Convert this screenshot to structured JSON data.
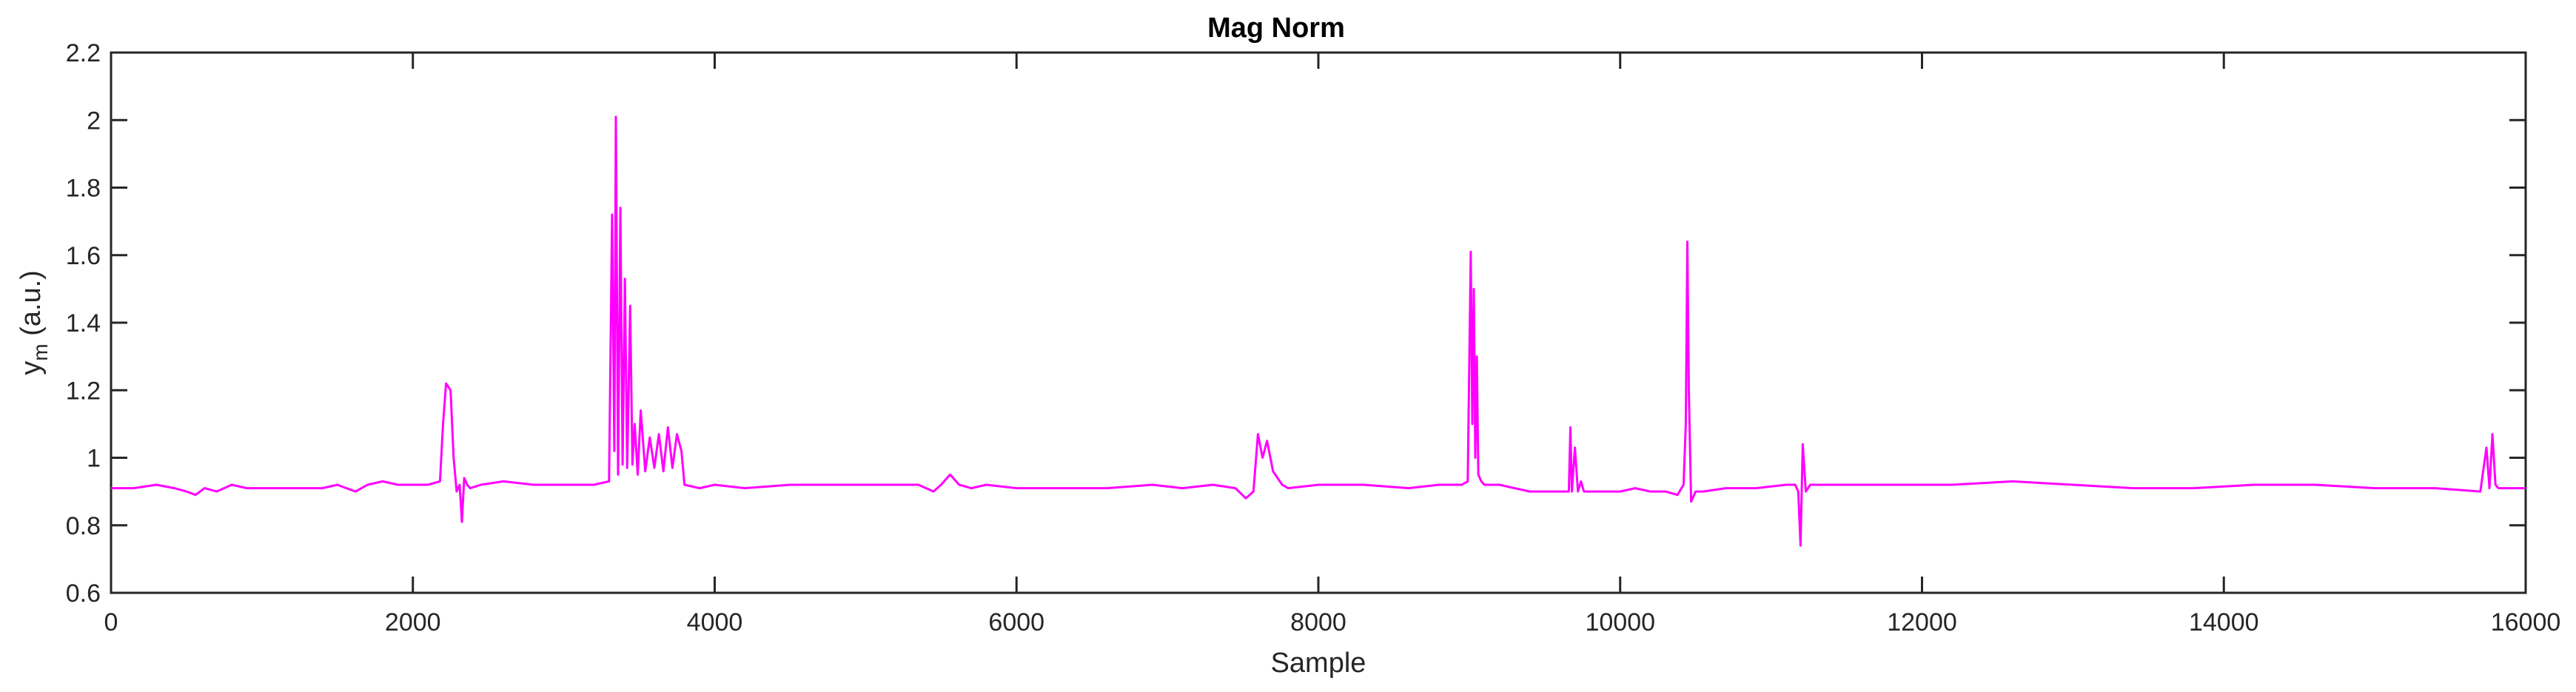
{
  "chart_data": {
    "type": "line",
    "title": "Mag Norm",
    "xlabel": "Sample",
    "ylabel_main": "y",
    "ylabel_sub": "m",
    "ylabel_unit": " (a.u.)",
    "xlim": [
      0,
      16000
    ],
    "ylim": [
      0.6,
      2.2
    ],
    "xticks": [
      0,
      2000,
      4000,
      6000,
      8000,
      10000,
      12000,
      14000,
      16000
    ],
    "xtick_labels": [
      "0",
      "2000",
      "4000",
      "6000",
      "8000",
      "10000",
      "12000",
      "14000",
      "16000"
    ],
    "yticks": [
      0.6,
      0.8,
      1,
      1.2,
      1.4,
      1.6,
      1.8,
      2,
      2.2
    ],
    "ytick_labels": [
      "0.6",
      "0.8",
      "1",
      "1.2",
      "1.4",
      "1.6",
      "1.8",
      "2",
      "2.2"
    ],
    "grid": false,
    "series": [
      {
        "color": "#ff00ff",
        "x": [
          0,
          150,
          300,
          420,
          500,
          560,
          620,
          700,
          800,
          900,
          1000,
          1200,
          1400,
          1500,
          1560,
          1620,
          1700,
          1800,
          1900,
          2000,
          2100,
          2180,
          2200,
          2220,
          2250,
          2270,
          2290,
          2310,
          2325,
          2340,
          2360,
          2380,
          2450,
          2600,
          2800,
          3000,
          3200,
          3300,
          3320,
          3335,
          3345,
          3360,
          3375,
          3390,
          3405,
          3420,
          3440,
          3455,
          3470,
          3490,
          3510,
          3540,
          3570,
          3600,
          3630,
          3660,
          3690,
          3720,
          3750,
          3780,
          3800,
          3900,
          4000,
          4200,
          4500,
          4800,
          5000,
          5200,
          5350,
          5450,
          5500,
          5560,
          5620,
          5700,
          5800,
          6000,
          6300,
          6600,
          6900,
          7100,
          7300,
          7450,
          7520,
          7570,
          7600,
          7630,
          7660,
          7700,
          7760,
          7800,
          8000,
          8300,
          8600,
          8800,
          8950,
          8990,
          9010,
          9020,
          9030,
          9040,
          9050,
          9060,
          9080,
          9100,
          9200,
          9400,
          9600,
          9660,
          9670,
          9680,
          9700,
          9720,
          9740,
          9760,
          9800,
          9900,
          10000,
          10100,
          10200,
          10300,
          10380,
          10420,
          10435,
          10445,
          10455,
          10470,
          10500,
          10550,
          10700,
          10900,
          11100,
          11160,
          11180,
          11195,
          11210,
          11230,
          11260,
          11400,
          11800,
          12200,
          12600,
          13000,
          13400,
          13800,
          14200,
          14600,
          15000,
          15400,
          15700,
          15740,
          15760,
          15780,
          15800,
          15820,
          15860,
          15900,
          16000
        ],
        "y": [
          0.91,
          0.91,
          0.92,
          0.91,
          0.9,
          0.89,
          0.91,
          0.9,
          0.92,
          0.91,
          0.91,
          0.91,
          0.91,
          0.92,
          0.91,
          0.9,
          0.92,
          0.93,
          0.92,
          0.92,
          0.92,
          0.93,
          1.1,
          1.22,
          1.2,
          1.0,
          0.9,
          0.92,
          0.81,
          0.94,
          0.92,
          0.91,
          0.92,
          0.93,
          0.92,
          0.92,
          0.92,
          0.93,
          1.72,
          1.02,
          2.01,
          0.95,
          1.74,
          0.98,
          1.53,
          0.97,
          1.45,
          0.98,
          1.1,
          0.95,
          1.14,
          0.96,
          1.06,
          0.97,
          1.07,
          0.96,
          1.09,
          0.97,
          1.07,
          1.02,
          0.92,
          0.91,
          0.92,
          0.91,
          0.92,
          0.92,
          0.92,
          0.92,
          0.92,
          0.9,
          0.92,
          0.95,
          0.92,
          0.91,
          0.92,
          0.91,
          0.91,
          0.91,
          0.92,
          0.91,
          0.92,
          0.91,
          0.88,
          0.9,
          1.07,
          1.0,
          1.05,
          0.96,
          0.92,
          0.91,
          0.92,
          0.92,
          0.91,
          0.92,
          0.92,
          0.93,
          1.61,
          1.1,
          1.5,
          1.0,
          1.3,
          0.95,
          0.93,
          0.92,
          0.92,
          0.9,
          0.9,
          0.9,
          1.09,
          0.9,
          1.03,
          0.9,
          0.93,
          0.9,
          0.9,
          0.9,
          0.9,
          0.91,
          0.9,
          0.9,
          0.89,
          0.92,
          1.1,
          1.64,
          1.2,
          0.87,
          0.9,
          0.9,
          0.91,
          0.91,
          0.92,
          0.92,
          0.9,
          0.74,
          1.04,
          0.9,
          0.92,
          0.92,
          0.92,
          0.92,
          0.93,
          0.92,
          0.91,
          0.91,
          0.92,
          0.92,
          0.91,
          0.91,
          0.9,
          1.03,
          0.91,
          1.07,
          0.92,
          0.91,
          0.91,
          0.91,
          0.91
        ]
      }
    ]
  }
}
